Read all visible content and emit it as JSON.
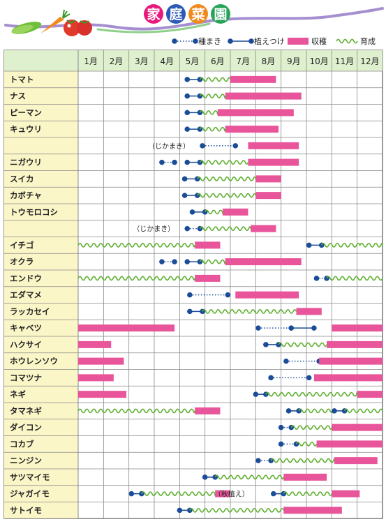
{
  "header": {
    "title_chars": [
      "家",
      "庭",
      "菜",
      "園"
    ],
    "title_colors": [
      "#e8197c",
      "#2b59b8",
      "#f08a1c",
      "#28a35a"
    ]
  },
  "legend": [
    {
      "kind": "sow",
      "label": "種まき"
    },
    {
      "kind": "plant",
      "label": "植えつけ"
    },
    {
      "kind": "harvest",
      "label": "収穫"
    },
    {
      "kind": "grow",
      "label": "育成"
    }
  ],
  "colors": {
    "dot": "#1a4c98",
    "harvest": "#e8559a",
    "grow": "#5fb030",
    "label_bg": "#fbf6c8",
    "header_bg": "#dff0cf",
    "grid": "#888888"
  },
  "chart_data": {
    "type": "gantt",
    "months": [
      "1月",
      "2月",
      "3月",
      "4月",
      "5月",
      "6月",
      "7月",
      "8月",
      "9月",
      "10月",
      "11月",
      "12月"
    ],
    "rows": [
      {
        "label": "トマト",
        "note": "",
        "segments": [
          {
            "type": "plant",
            "from": 4.3,
            "to": 4.8
          },
          {
            "type": "grow",
            "from": 4.8,
            "to": 6.0
          },
          {
            "type": "harvest",
            "from": 6.0,
            "to": 7.8
          }
        ]
      },
      {
        "label": "ナス",
        "note": "",
        "segments": [
          {
            "type": "plant",
            "from": 4.3,
            "to": 4.8
          },
          {
            "type": "grow",
            "from": 4.8,
            "to": 5.8
          },
          {
            "type": "harvest",
            "from": 5.8,
            "to": 8.8
          }
        ]
      },
      {
        "label": "ピーマン",
        "note": "",
        "segments": [
          {
            "type": "plant",
            "from": 4.3,
            "to": 4.8
          },
          {
            "type": "grow",
            "from": 4.8,
            "to": 5.5
          },
          {
            "type": "harvest",
            "from": 5.5,
            "to": 8.5
          }
        ]
      },
      {
        "label": "キュウリ",
        "note": "",
        "segments": [
          {
            "type": "plant",
            "from": 4.3,
            "to": 4.8
          },
          {
            "type": "grow",
            "from": 4.8,
            "to": 5.8
          },
          {
            "type": "harvest",
            "from": 5.8,
            "to": 7.9
          }
        ]
      },
      {
        "label": "",
        "note": "（じかまき）",
        "segments": [
          {
            "type": "sow",
            "from": 4.9,
            "to": 6.2
          },
          {
            "type": "harvest",
            "from": 6.7,
            "to": 8.7
          }
        ]
      },
      {
        "label": "ニガウリ",
        "note": "",
        "segments": [
          {
            "type": "sow",
            "from": 3.3,
            "to": 3.8
          },
          {
            "type": "plant",
            "from": 4.3,
            "to": 4.8
          },
          {
            "type": "grow",
            "from": 4.8,
            "to": 6.7
          },
          {
            "type": "harvest",
            "from": 6.7,
            "to": 8.7
          }
        ]
      },
      {
        "label": "スイカ",
        "note": "",
        "segments": [
          {
            "type": "plant",
            "from": 4.2,
            "to": 4.7
          },
          {
            "type": "grow",
            "from": 4.7,
            "to": 7.0
          },
          {
            "type": "harvest",
            "from": 7.0,
            "to": 8.0
          }
        ]
      },
      {
        "label": "カボチャ",
        "note": "",
        "segments": [
          {
            "type": "plant",
            "from": 4.2,
            "to": 4.7
          },
          {
            "type": "grow",
            "from": 4.7,
            "to": 7.0
          },
          {
            "type": "harvest",
            "from": 7.0,
            "to": 8.0
          }
        ]
      },
      {
        "label": "トウモロコシ",
        "note": "",
        "segments": [
          {
            "type": "plant",
            "from": 4.5,
            "to": 5.0
          },
          {
            "type": "grow",
            "from": 5.0,
            "to": 5.7
          },
          {
            "type": "harvest",
            "from": 5.7,
            "to": 6.7
          }
        ]
      },
      {
        "label": "",
        "note": "（じかまき）",
        "segments": [
          {
            "type": "sow",
            "from": 4.3,
            "to": 4.8
          },
          {
            "type": "grow",
            "from": 4.8,
            "to": 6.8
          },
          {
            "type": "harvest",
            "from": 6.8,
            "to": 7.8
          }
        ]
      },
      {
        "label": "イチゴ",
        "note": "",
        "segments": [
          {
            "type": "grow",
            "from": 0.0,
            "to": 4.6
          },
          {
            "type": "harvest",
            "from": 4.6,
            "to": 5.6
          },
          {
            "type": "plant",
            "from": 9.1,
            "to": 9.6
          },
          {
            "type": "grow",
            "from": 9.6,
            "to": 12.0
          }
        ]
      },
      {
        "label": "オクラ",
        "note": "",
        "segments": [
          {
            "type": "sow",
            "from": 3.3,
            "to": 3.8
          },
          {
            "type": "plant",
            "from": 4.3,
            "to": 4.8
          },
          {
            "type": "grow",
            "from": 4.8,
            "to": 5.8
          },
          {
            "type": "harvest",
            "from": 5.8,
            "to": 8.8
          }
        ]
      },
      {
        "label": "エンドウ",
        "note": "",
        "segments": [
          {
            "type": "grow",
            "from": 0.0,
            "to": 4.6
          },
          {
            "type": "harvest",
            "from": 4.6,
            "to": 5.6
          },
          {
            "type": "sow",
            "from": 9.4,
            "to": 9.8
          },
          {
            "type": "grow",
            "from": 9.8,
            "to": 12.0
          }
        ]
      },
      {
        "label": "エダマメ",
        "note": "",
        "segments": [
          {
            "type": "sow",
            "from": 4.4,
            "to": 5.9
          },
          {
            "type": "harvest",
            "from": 6.2,
            "to": 8.7
          }
        ]
      },
      {
        "label": "ラッカセイ",
        "note": "",
        "segments": [
          {
            "type": "plant",
            "from": 4.4,
            "to": 4.9
          },
          {
            "type": "grow",
            "from": 4.9,
            "to": 8.6
          },
          {
            "type": "harvest",
            "from": 8.6,
            "to": 9.6
          }
        ]
      },
      {
        "label": "キャベツ",
        "note": "",
        "segments": [
          {
            "type": "harvest",
            "from": 0.0,
            "to": 3.8
          },
          {
            "type": "sow",
            "from": 7.1,
            "to": 8.4
          },
          {
            "type": "plant",
            "from": 8.4,
            "to": 9.3
          },
          {
            "type": "harvest",
            "from": 10.0,
            "to": 12.0
          }
        ]
      },
      {
        "label": "ハクサイ",
        "note": "",
        "segments": [
          {
            "type": "harvest",
            "from": 0.0,
            "to": 1.3
          },
          {
            "type": "plant",
            "from": 7.4,
            "to": 7.9
          },
          {
            "type": "grow",
            "from": 7.9,
            "to": 9.8
          },
          {
            "type": "harvest",
            "from": 9.8,
            "to": 12.0
          }
        ]
      },
      {
        "label": "ホウレンソウ",
        "note": "",
        "segments": [
          {
            "type": "harvest",
            "from": 0.0,
            "to": 1.8
          },
          {
            "type": "sow",
            "from": 8.2,
            "to": 9.5
          },
          {
            "type": "harvest",
            "from": 9.5,
            "to": 12.0
          }
        ]
      },
      {
        "label": "コマツナ",
        "note": "",
        "segments": [
          {
            "type": "harvest",
            "from": 0.0,
            "to": 1.4
          },
          {
            "type": "sow",
            "from": 7.6,
            "to": 9.1
          },
          {
            "type": "harvest",
            "from": 9.3,
            "to": 12.0
          }
        ]
      },
      {
        "label": "ネギ",
        "note": "",
        "segments": [
          {
            "type": "harvest",
            "from": 0.0,
            "to": 1.9
          },
          {
            "type": "plant",
            "from": 7.0,
            "to": 7.4
          },
          {
            "type": "grow",
            "from": 7.4,
            "to": 11.0
          },
          {
            "type": "harvest",
            "from": 11.0,
            "to": 12.0
          }
        ]
      },
      {
        "label": "タマネギ",
        "note": "",
        "segments": [
          {
            "type": "grow",
            "from": 0.0,
            "to": 4.6
          },
          {
            "type": "harvest",
            "from": 4.6,
            "to": 5.6
          },
          {
            "type": "plant",
            "from": 8.3,
            "to": 8.7
          },
          {
            "type": "grow",
            "from": 8.7,
            "to": 10.1
          },
          {
            "type": "plant",
            "from": 10.1,
            "to": 10.5
          },
          {
            "type": "grow",
            "from": 10.5,
            "to": 12.0
          }
        ]
      },
      {
        "label": "ダイコン",
        "note": "",
        "segments": [
          {
            "type": "sow",
            "from": 8.0,
            "to": 8.4
          },
          {
            "type": "grow",
            "from": 8.4,
            "to": 10.0
          },
          {
            "type": "harvest",
            "from": 10.0,
            "to": 12.0
          }
        ]
      },
      {
        "label": "コカブ",
        "note": "",
        "segments": [
          {
            "type": "sow",
            "from": 8.0,
            "to": 8.6
          },
          {
            "type": "grow",
            "from": 8.6,
            "to": 9.4
          },
          {
            "type": "harvest",
            "from": 9.4,
            "to": 12.0
          }
        ]
      },
      {
        "label": "ニンジン",
        "note": "",
        "segments": [
          {
            "type": "sow",
            "from": 7.1,
            "to": 7.6
          },
          {
            "type": "grow",
            "from": 7.6,
            "to": 10.1
          },
          {
            "type": "harvest",
            "from": 10.1,
            "to": 11.8
          }
        ]
      },
      {
        "label": "サツマイモ",
        "note": "",
        "segments": [
          {
            "type": "plant",
            "from": 5.0,
            "to": 5.4
          },
          {
            "type": "grow",
            "from": 5.4,
            "to": 8.1
          },
          {
            "type": "harvest",
            "from": 8.1,
            "to": 9.8
          }
        ]
      },
      {
        "label": "ジャガイモ",
        "note": "（秋植え）",
        "segments": [
          {
            "type": "plant",
            "from": 2.1,
            "to": 2.5
          },
          {
            "type": "grow",
            "from": 2.5,
            "to": 5.4
          },
          {
            "type": "harvest",
            "from": 5.4,
            "to": 6.0
          },
          {
            "type": "plant",
            "from": 7.7,
            "to": 8.1
          },
          {
            "type": "grow",
            "from": 8.1,
            "to": 10.0
          },
          {
            "type": "harvest",
            "from": 10.0,
            "to": 11.1
          }
        ]
      },
      {
        "label": "サトイモ",
        "note": "",
        "segments": [
          {
            "type": "plant",
            "from": 4.0,
            "to": 4.4
          },
          {
            "type": "grow",
            "from": 4.4,
            "to": 8.1
          },
          {
            "type": "harvest",
            "from": 8.1,
            "to": 10.4
          }
        ]
      }
    ]
  }
}
